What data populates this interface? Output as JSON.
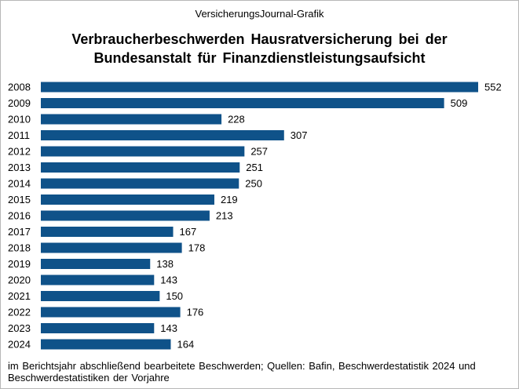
{
  "header": {
    "source_line": "VersicherungsJournal-Grafik",
    "title_line1": "Verbraucherbeschwerden Hausratversicherung bei der",
    "title_line2": "Bundesanstalt für Finanzdienstleistungsaufsicht"
  },
  "footnote": "im Berichtsjahr abschließend bearbeitete Beschwerden; Quellen: Bafin, Beschwerdestatistik 2024 und Beschwerdestatistiken der Vorjahre",
  "colors": {
    "bar": "#0f5289",
    "border": "#b7b7b7"
  },
  "chart_data": {
    "type": "bar",
    "orientation": "horizontal",
    "categories": [
      "2008",
      "2009",
      "2010",
      "2011",
      "2012",
      "2013",
      "2014",
      "2015",
      "2016",
      "2017",
      "2018",
      "2019",
      "2020",
      "2021",
      "2022",
      "2023",
      "2024"
    ],
    "values": [
      552,
      509,
      228,
      307,
      257,
      251,
      250,
      219,
      213,
      167,
      178,
      138,
      143,
      150,
      176,
      143,
      164
    ],
    "title": "Verbraucherbeschwerden Hausratversicherung bei der Bundesanstalt für Finanzdienstleistungsaufsicht",
    "xlabel": "",
    "ylabel": "",
    "xlim": [
      0,
      552
    ],
    "grid": false,
    "legend": "none",
    "data_labels": true
  }
}
